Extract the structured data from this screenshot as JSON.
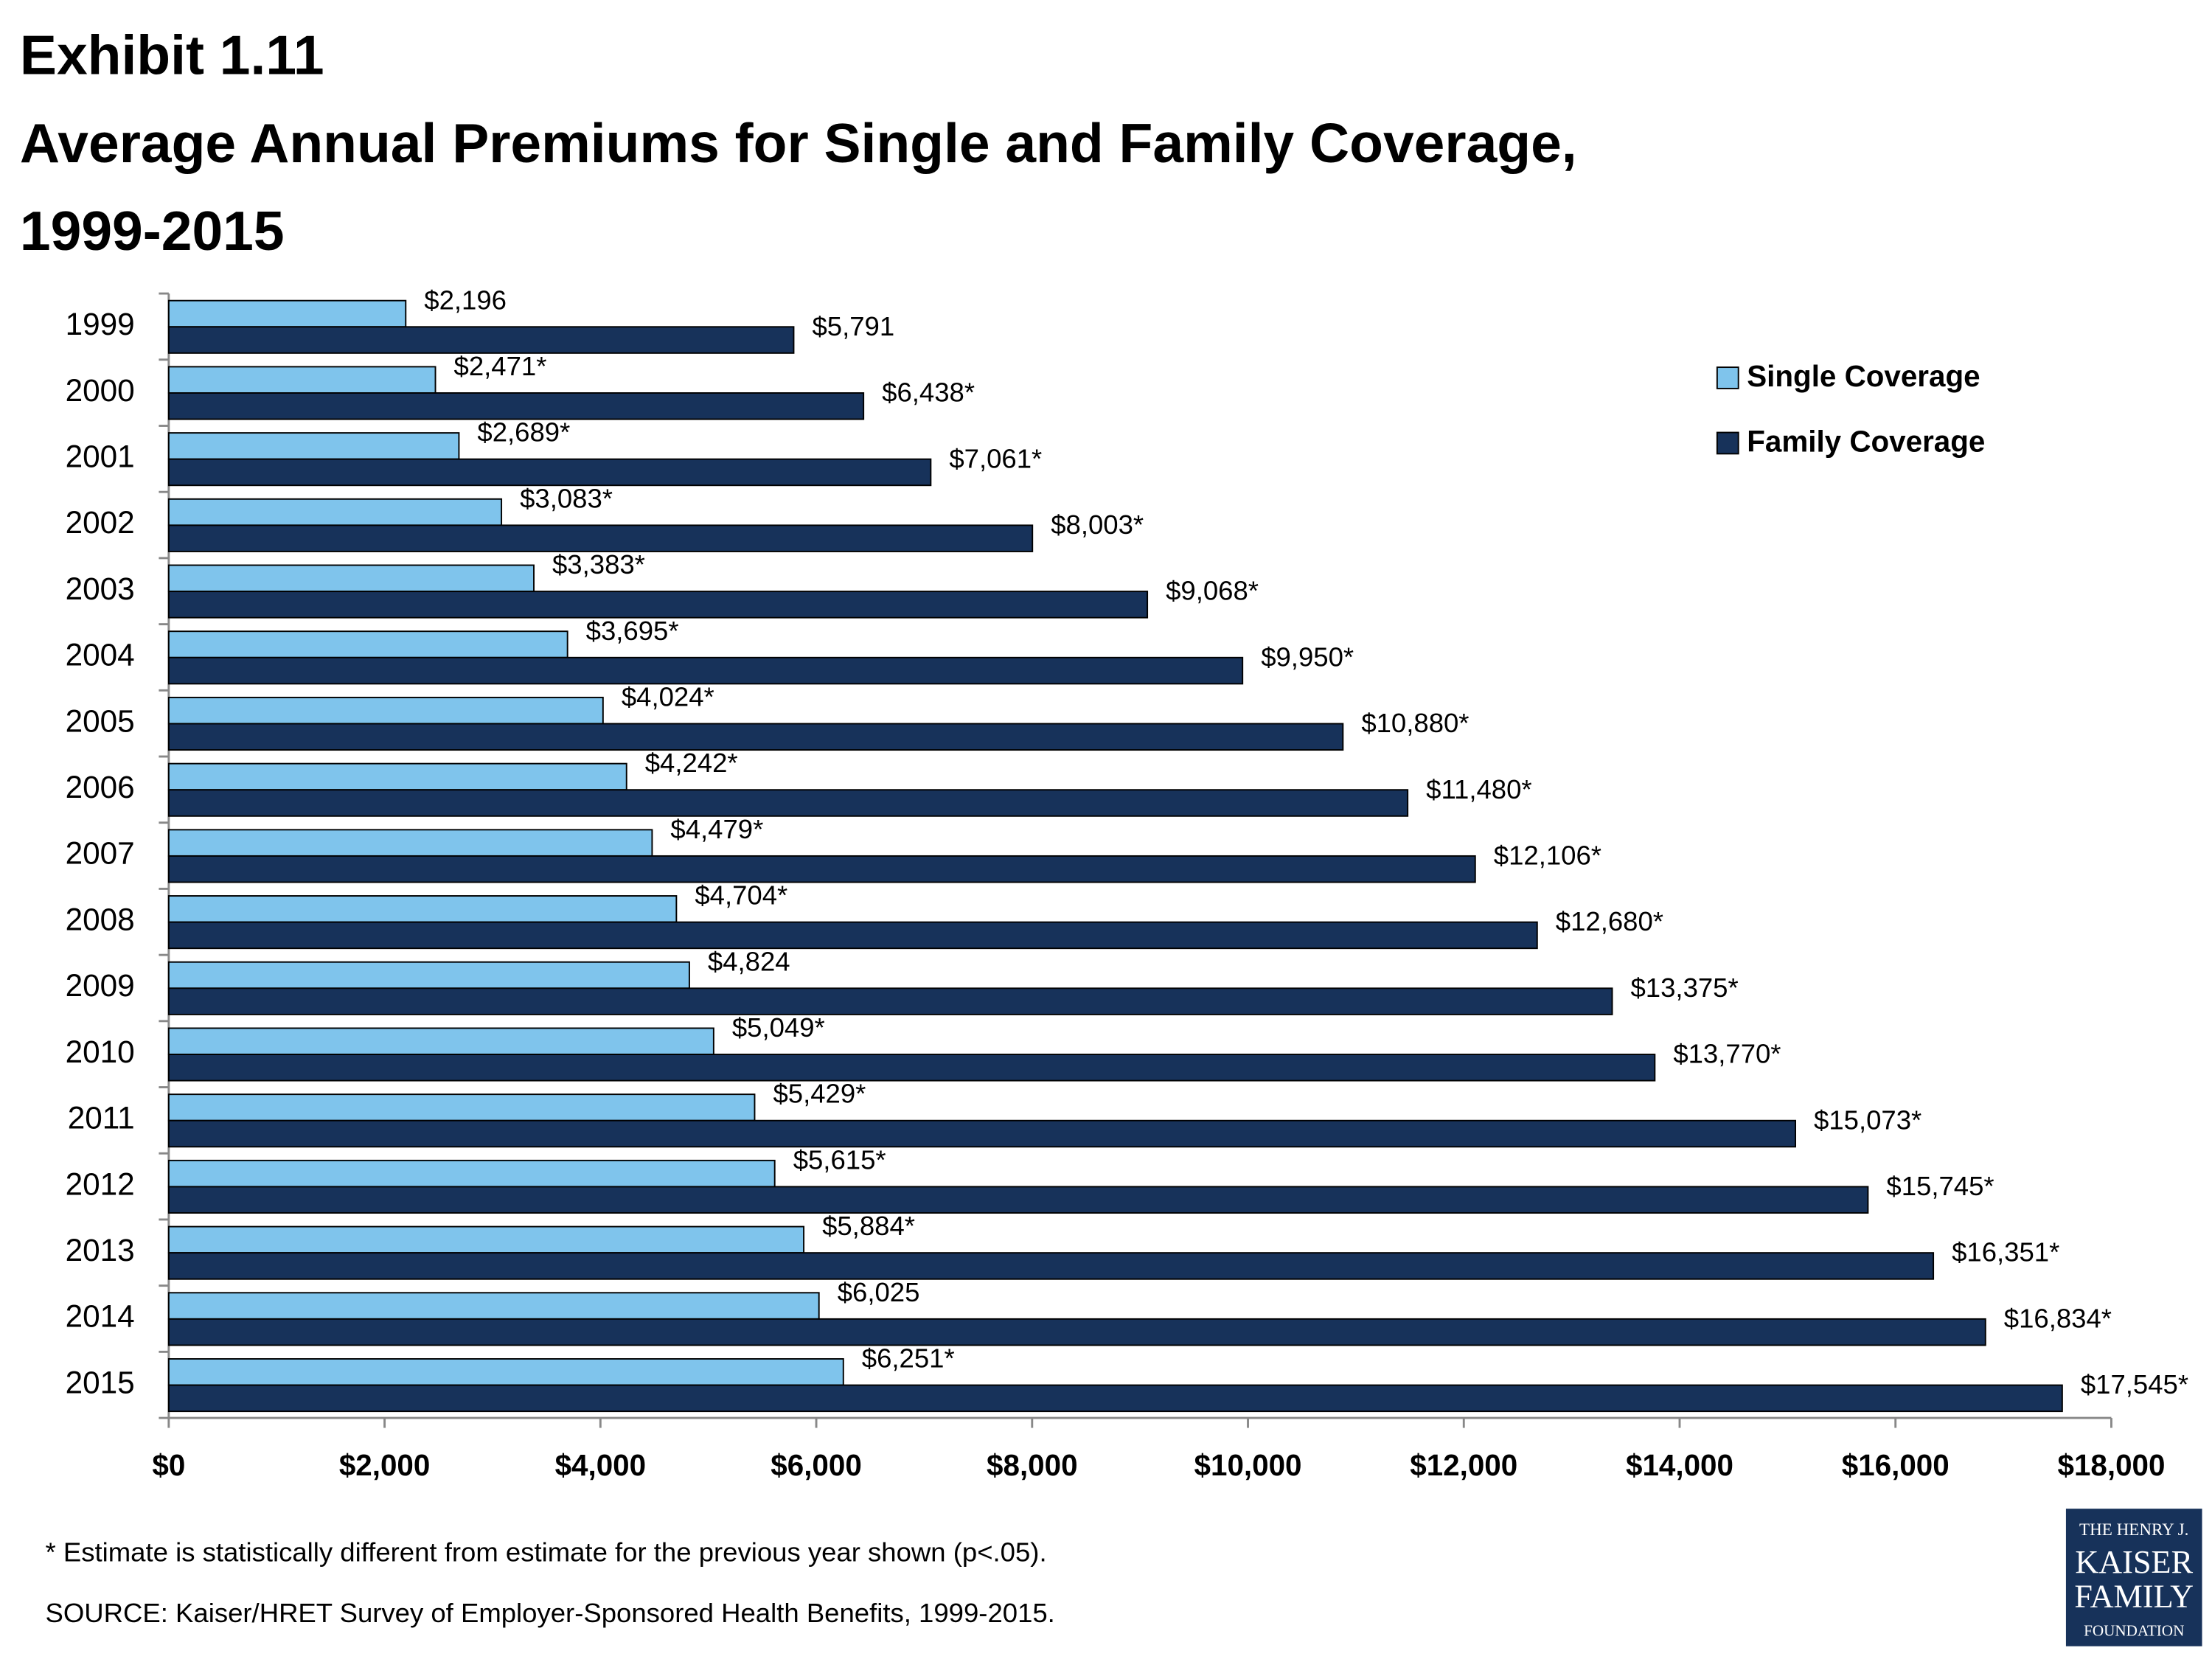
{
  "chart_data": {
    "type": "bar",
    "orientation": "horizontal",
    "title": [
      "Exhibit 1.11",
      "Average Annual Premiums for Single and Family Coverage,",
      "1999-2015"
    ],
    "categories": [
      "1999",
      "2000",
      "2001",
      "2002",
      "2003",
      "2004",
      "2005",
      "2006",
      "2007",
      "2008",
      "2009",
      "2010",
      "2011",
      "2012",
      "2013",
      "2014",
      "2015"
    ],
    "series": [
      {
        "name": "Single Coverage",
        "color": "#7fc4ec",
        "values": [
          2196,
          2471,
          2689,
          3083,
          3383,
          3695,
          4024,
          4242,
          4479,
          4704,
          4824,
          5049,
          5429,
          5615,
          5884,
          6025,
          6251
        ],
        "value_labels": [
          "$2,196",
          "$2,471*",
          "$2,689*",
          "$3,083*",
          "$3,383*",
          "$3,695*",
          "$4,024*",
          "$4,242*",
          "$4,479*",
          "$4,704*",
          "$4,824",
          "$5,049*",
          "$5,429*",
          "$5,615*",
          "$5,884*",
          "$6,025",
          "$6,251*"
        ]
      },
      {
        "name": "Family Coverage",
        "color": "#17325a",
        "values": [
          5791,
          6438,
          7061,
          8003,
          9068,
          9950,
          10880,
          11480,
          12106,
          12680,
          13375,
          13770,
          15073,
          15745,
          16351,
          16834,
          17545
        ],
        "value_labels": [
          "$5,791",
          "$6,438*",
          "$7,061*",
          "$8,003*",
          "$9,068*",
          "$9,950*",
          "$10,880*",
          "$11,480*",
          "$12,106*",
          "$12,680*",
          "$13,375*",
          "$13,770*",
          "$15,073*",
          "$15,745*",
          "$16,351*",
          "$16,834*",
          "$17,545*"
        ]
      }
    ],
    "xlim": [
      0,
      18000
    ],
    "xticks": [
      {
        "value": 0,
        "label": "$0"
      },
      {
        "value": 2000,
        "label": "$2,000"
      },
      {
        "value": 4000,
        "label": "$4,000"
      },
      {
        "value": 6000,
        "label": "$6,000"
      },
      {
        "value": 8000,
        "label": "$8,000"
      },
      {
        "value": 10000,
        "label": "$10,000"
      },
      {
        "value": 12000,
        "label": "$12,000"
      },
      {
        "value": 14000,
        "label": "$14,000"
      },
      {
        "value": 16000,
        "label": "$16,000"
      },
      {
        "value": 18000,
        "label": "$18,000"
      }
    ],
    "grid": false,
    "legend": "upper right",
    "note": "* Estimate is statistically different from estimate for the previous year shown (p<.05).",
    "source": "SOURCE:  Kaiser/HRET Survey of Employer-Sponsored Health Benefits, 1999-2015."
  },
  "logo": [
    "THE HENRY J.",
    "KAISER",
    "FAMILY",
    "FOUNDATION"
  ]
}
